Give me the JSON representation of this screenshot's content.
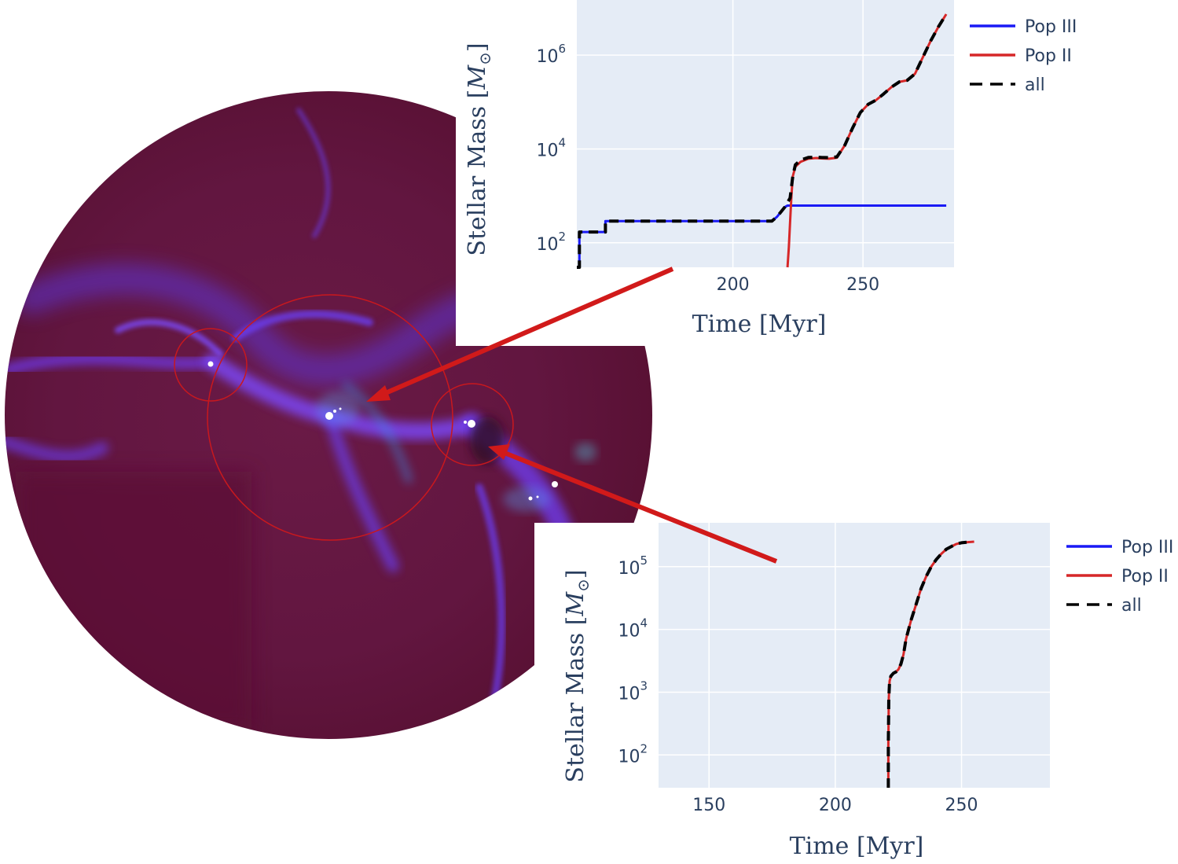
{
  "image_panel": {
    "description": "",
    "colors": {
      "background": "#5a0f2e",
      "filament": "#6a3cf0",
      "bright": "#ffffff",
      "circle": "#c8181e"
    },
    "arrow_color": "#d11a1a"
  },
  "chart_data": [
    {
      "type": "line",
      "xlabel": "Time [Myr]",
      "ylabel": "Stellar Mass [M_sun]",
      "ylabel_plain": "Stellar Mass [",
      "ylabel_sym": "M",
      "ylabel_sub": "⊙",
      "ylabel_end": "]",
      "yscale": "log",
      "xlim": [
        140,
        285
      ],
      "ylim": [
        30,
        15000000.0
      ],
      "xticks": [
        {
          "v": 200,
          "label": "200"
        },
        {
          "v": 250,
          "label": "250"
        }
      ],
      "yticks": [
        {
          "v": 100,
          "base": "10",
          "exp": "2"
        },
        {
          "v": 10000,
          "base": "10",
          "exp": "4"
        },
        {
          "v": 1000000,
          "base": "10",
          "exp": "6"
        }
      ],
      "legend": {
        "position": "right",
        "entries": [
          "Pop III",
          "Pop II",
          "all"
        ]
      },
      "series": [
        {
          "name": "Pop III",
          "color": "#1a1af5",
          "dash": "solid",
          "x": [
            140,
            141,
            141,
            151,
            151,
            215,
            217,
            220,
            221,
            282
          ],
          "y": [
            30,
            30,
            170,
            170,
            290,
            290,
            360,
            580,
            620,
            620
          ]
        },
        {
          "name": "Pop II",
          "color": "#d62728",
          "dash": "solid",
          "x": [
            221,
            221.5,
            222,
            222.5,
            223,
            224,
            226,
            229,
            232,
            234,
            237,
            240,
            243,
            246,
            249,
            252,
            255,
            258,
            261,
            264,
            267,
            270,
            273,
            276,
            279,
            282
          ],
          "y": [
            30,
            80,
            280,
            1000,
            2600,
            4200,
            5300,
            6200,
            6400,
            6300,
            6200,
            6500,
            12000,
            28000,
            60000,
            90000,
            110000,
            150000,
            210000,
            270000,
            290000,
            400000,
            900000,
            2000000,
            4000000,
            7500000
          ]
        },
        {
          "name": "all",
          "color": "#000000",
          "dash": "dashed",
          "x": [
            140,
            141,
            141,
            151,
            151,
            215,
            217,
            220,
            222,
            223,
            224,
            226,
            229,
            232,
            234,
            237,
            240,
            243,
            246,
            249,
            252,
            255,
            258,
            261,
            264,
            267,
            270,
            273,
            276,
            279,
            282
          ],
          "y": [
            30,
            30,
            170,
            170,
            290,
            290,
            360,
            580,
            900,
            2600,
            4600,
            5800,
            6600,
            6700,
            6600,
            6500,
            6800,
            12000,
            28000,
            60000,
            90000,
            110000,
            150000,
            210000,
            270000,
            290000,
            400000,
            900000,
            2000000,
            4000000,
            7500000
          ]
        }
      ]
    },
    {
      "type": "line",
      "xlabel": "Time [Myr]",
      "ylabel": "Stellar Mass [M_sun]",
      "ylabel_plain": "Stellar Mass [",
      "ylabel_sym": "M",
      "ylabel_sub": "⊙",
      "ylabel_end": "]",
      "yscale": "log",
      "xlim": [
        130,
        285
      ],
      "ylim": [
        30,
        500000
      ],
      "xticks": [
        {
          "v": 150,
          "label": "150"
        },
        {
          "v": 200,
          "label": "200"
        },
        {
          "v": 250,
          "label": "250"
        }
      ],
      "yticks": [
        {
          "v": 100,
          "base": "10",
          "exp": "2"
        },
        {
          "v": 1000,
          "base": "10",
          "exp": "3"
        },
        {
          "v": 10000,
          "base": "10",
          "exp": "4"
        },
        {
          "v": 100000,
          "base": "10",
          "exp": "5"
        }
      ],
      "legend": {
        "position": "right",
        "entries": [
          "Pop III",
          "Pop II",
          "all"
        ]
      },
      "series": [
        {
          "name": "Pop III",
          "color": "#1a1af5",
          "dash": "solid",
          "x": [],
          "y": []
        },
        {
          "name": "Pop II",
          "color": "#d62728",
          "dash": "solid",
          "x": [
            221,
            221,
            221.2,
            221.5,
            222,
            223,
            224,
            225,
            226,
            227,
            228,
            230,
            232,
            234,
            236,
            238,
            240,
            242,
            244,
            246,
            248,
            250,
            252,
            255
          ],
          "y": [
            30,
            150,
            800,
            1500,
            1800,
            2000,
            2100,
            2300,
            2800,
            4000,
            7000,
            14000,
            25000,
            45000,
            70000,
            100000,
            130000,
            160000,
            190000,
            210000,
            230000,
            240000,
            245000,
            250000
          ]
        },
        {
          "name": "all",
          "color": "#000000",
          "dash": "dashed",
          "x": [
            221,
            221,
            221.2,
            221.5,
            222,
            223,
            224,
            225,
            226,
            227,
            228,
            230,
            232,
            234,
            236,
            238,
            240,
            242,
            244,
            246,
            248,
            250,
            252
          ],
          "y": [
            30,
            150,
            800,
            1500,
            1800,
            2000,
            2100,
            2300,
            2800,
            4000,
            7000,
            14000,
            25000,
            45000,
            70000,
            100000,
            130000,
            160000,
            190000,
            210000,
            230000,
            240000,
            245000
          ]
        }
      ]
    }
  ]
}
